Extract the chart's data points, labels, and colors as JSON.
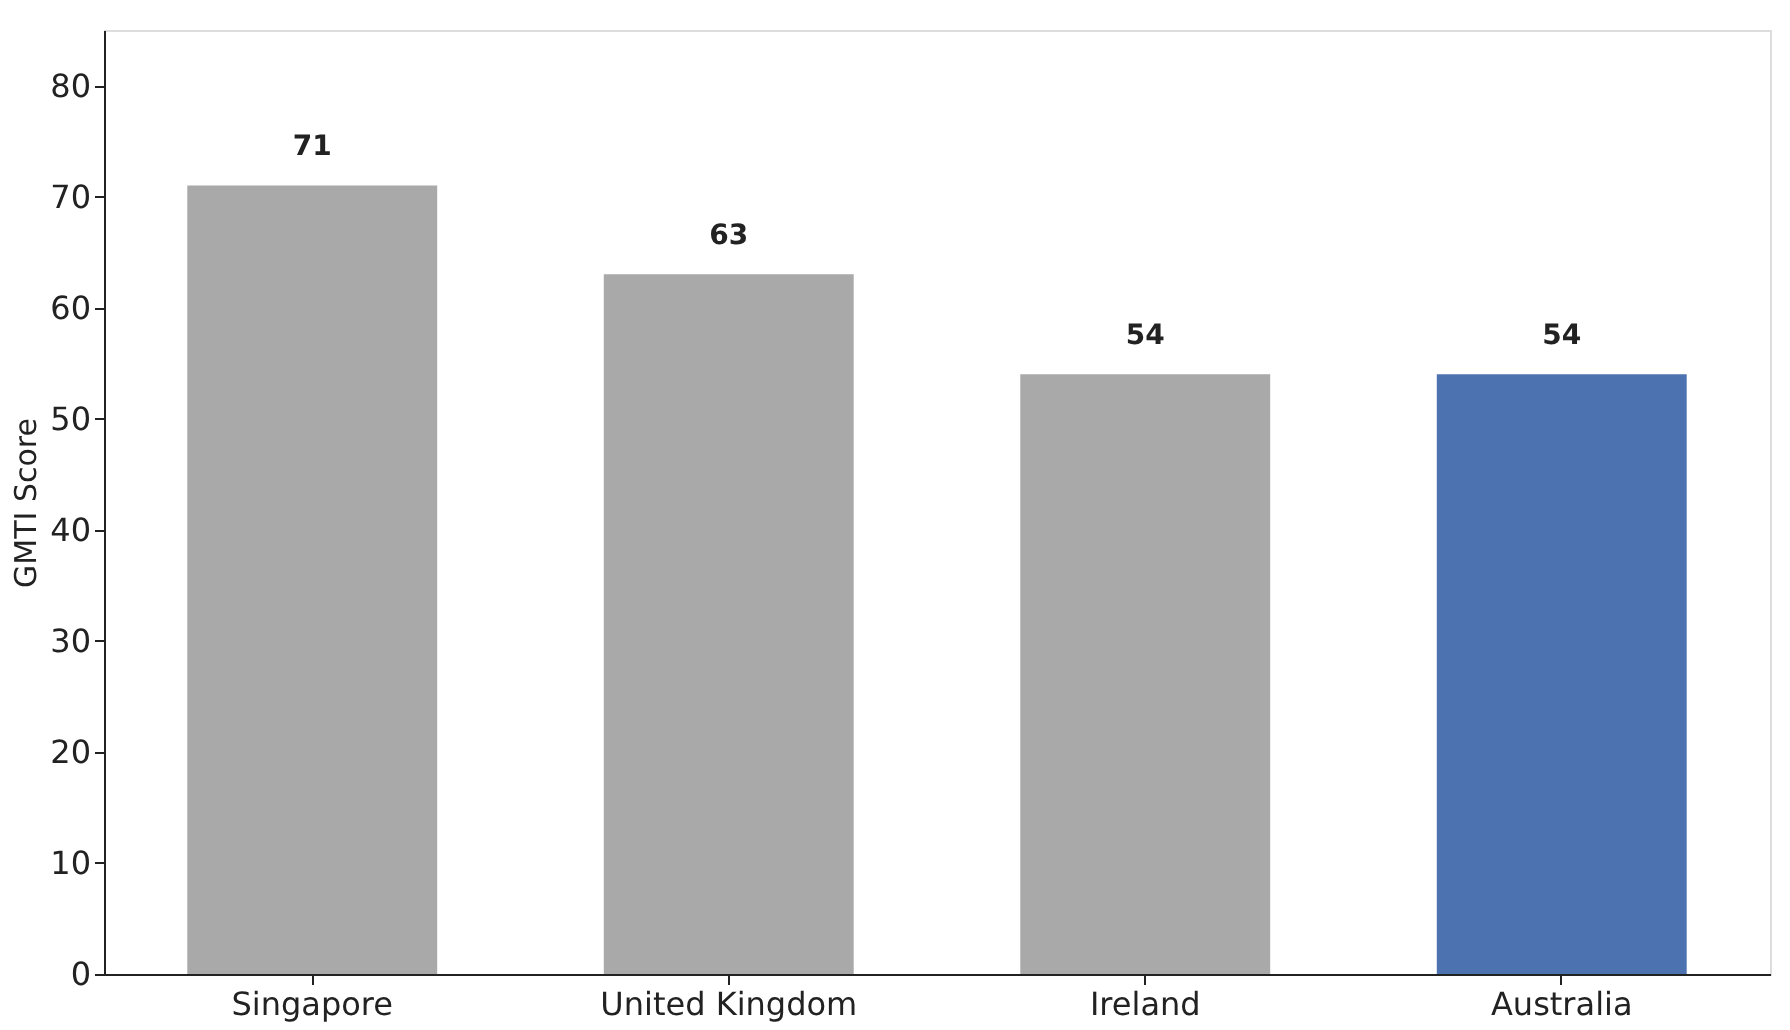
{
  "chart_data": {
    "type": "bar",
    "ylabel": "GMTI Score",
    "categories": [
      "Singapore",
      "United Kingdom",
      "Ireland",
      "Australia"
    ],
    "values": [
      71,
      63,
      54,
      54
    ],
    "colors": [
      "#a9a9a9",
      "#a9a9a9",
      "#a9a9a9",
      "#4c72b0"
    ],
    "ylim": [
      0,
      85
    ],
    "yticks": [
      0,
      10,
      20,
      30,
      40,
      50,
      60,
      70,
      80
    ],
    "data_labels": true,
    "grid": false
  }
}
